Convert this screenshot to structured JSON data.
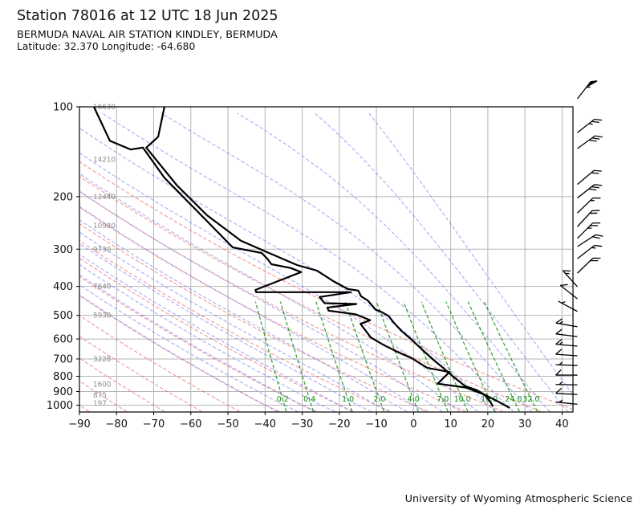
{
  "header": {
    "title": "Station 78016 at 12 UTC 18 Jun 2025",
    "subtitle": "BERMUDA NAVAL AIR STATION KINDLEY, BERMUDA",
    "location_line": "Latitude: 32.370 Longitude: -64.680"
  },
  "footer": {
    "credit": "University of Wyoming Atmospheric Science"
  },
  "axes": {
    "x_tick_labels_C": [
      -90,
      -80,
      -70,
      -60,
      -50,
      -40,
      -30,
      -20,
      -10,
      0,
      10,
      20,
      30,
      40
    ],
    "y_tick_labels_hPa": [
      100,
      200,
      300,
      400,
      500,
      600,
      700,
      800,
      900,
      1000
    ],
    "pressure_top_hPa": 100,
    "pressure_bottom_hPa": 1050
  },
  "height_labels": [
    {
      "p": 100,
      "label": "16630"
    },
    {
      "p": 150,
      "label": "14210"
    },
    {
      "p": 200,
      "label": "12440"
    },
    {
      "p": 250,
      "label": "10980"
    },
    {
      "p": 300,
      "label": "9730"
    },
    {
      "p": 400,
      "label": "7640"
    },
    {
      "p": 500,
      "label": "5930"
    },
    {
      "p": 700,
      "label": "3228"
    },
    {
      "p": 850,
      "label": "1600"
    },
    {
      "p": 925,
      "label": "875"
    },
    {
      "p": 985,
      "label": "197"
    }
  ],
  "colors": {
    "dry_adiabat": "#e85d5d",
    "moist_adiabat": "#7a7af0",
    "mixing_ratio": "#0e8c0e",
    "grid": "#b5b5b5",
    "curve": "#000000",
    "height_label": "#8a8a8a",
    "frame": "#000000"
  },
  "chart_data": {
    "type": "line",
    "diagram": "thermodynamic sounding (T vs log-p)",
    "pressure_unit": "hPa",
    "temperature_unit": "degC",
    "background_lines": {
      "dry_adiabats_C": {
        "start": -90,
        "end": 40,
        "step": 10
      },
      "moist_adiabats_C": {
        "start": -40,
        "end": 45,
        "step": 5
      },
      "mixing_ratios_g_kg": [
        0.2,
        0.4,
        1.0,
        2.0,
        4.0,
        7.0,
        10.0,
        16.0,
        24.0,
        32.0
      ],
      "mixing_label_pressure_hPa": 955
    },
    "series": [
      {
        "name": "temperature",
        "points": [
          [
            100,
            -67.1
          ],
          [
            126,
            -68.8
          ],
          [
            137,
            -72.0
          ],
          [
            183,
            -63.8
          ],
          [
            231,
            -55.6
          ],
          [
            281,
            -46.5
          ],
          [
            305,
            -40.0
          ],
          [
            339,
            -31.4
          ],
          [
            354,
            -26.0
          ],
          [
            384,
            -21.6
          ],
          [
            408,
            -17.7
          ],
          [
            413,
            -14.9
          ],
          [
            432,
            -14.1
          ],
          [
            445,
            -12.4
          ],
          [
            479,
            -10.2
          ],
          [
            485,
            -8.9
          ],
          [
            503,
            -6.7
          ],
          [
            531,
            -5.2
          ],
          [
            566,
            -3.1
          ],
          [
            603,
            -0.5
          ],
          [
            644,
            1.9
          ],
          [
            709,
            5.6
          ],
          [
            754,
            8.2
          ],
          [
            797,
            10.4
          ],
          [
            862,
            13.8
          ],
          [
            889,
            16.9
          ],
          [
            926,
            19.4
          ],
          [
            971,
            22.7
          ],
          [
            1022,
            25.9
          ]
        ]
      },
      {
        "name": "dewpoint",
        "points": [
          [
            100,
            -86.1
          ],
          [
            130,
            -81.8
          ],
          [
            139,
            -76.2
          ],
          [
            137,
            -72.9
          ],
          [
            173,
            -67.1
          ],
          [
            223,
            -58.4
          ],
          [
            296,
            -48.7
          ],
          [
            309,
            -40.9
          ],
          [
            323,
            -39.4
          ],
          [
            337,
            -38.3
          ],
          [
            347,
            -33.1
          ],
          [
            358,
            -30.3
          ],
          [
            386,
            -37.0
          ],
          [
            411,
            -42.6
          ],
          [
            418,
            -42.4
          ],
          [
            418,
            -16.9
          ],
          [
            434,
            -25.3
          ],
          [
            455,
            -24.0
          ],
          [
            458,
            -15.4
          ],
          [
            471,
            -23.2
          ],
          [
            482,
            -22.9
          ],
          [
            496,
            -15.6
          ],
          [
            519,
            -11.7
          ],
          [
            534,
            -14.3
          ],
          [
            593,
            -11.5
          ],
          [
            627,
            -8.2
          ],
          [
            657,
            -5.0
          ],
          [
            670,
            -3.5
          ],
          [
            696,
            -0.5
          ],
          [
            750,
            3.7
          ],
          [
            774,
            9.7
          ],
          [
            847,
            6.5
          ],
          [
            873,
            14.1
          ],
          [
            915,
            18.4
          ],
          [
            926,
            19.2
          ],
          [
            967,
            20.5
          ],
          [
            1010,
            21.4
          ]
        ]
      }
    ],
    "wind_barbs": [
      {
        "p": 94,
        "angle": 52,
        "pennants": 1,
        "full": 0,
        "half": 1
      },
      {
        "p": 122,
        "angle": 38,
        "pennants": 0,
        "full": 2,
        "half": 1
      },
      {
        "p": 138,
        "angle": 36,
        "pennants": 0,
        "full": 3,
        "half": 0
      },
      {
        "p": 182,
        "angle": 40,
        "pennants": 0,
        "full": 2,
        "half": 0
      },
      {
        "p": 202,
        "angle": 38,
        "pennants": 0,
        "full": 3,
        "half": 0
      },
      {
        "p": 227,
        "angle": 44,
        "pennants": 0,
        "full": 1,
        "half": 1
      },
      {
        "p": 252,
        "angle": 47,
        "pennants": 0,
        "full": 2,
        "half": 0
      },
      {
        "p": 276,
        "angle": 45,
        "pennants": 0,
        "full": 2,
        "half": 1
      },
      {
        "p": 294,
        "angle": 33,
        "pennants": 0,
        "full": 2,
        "half": 0
      },
      {
        "p": 323,
        "angle": 38,
        "pennants": 0,
        "full": 1,
        "half": 1
      },
      {
        "p": 361,
        "angle": 44,
        "pennants": 0,
        "full": 2,
        "half": 0
      },
      {
        "p": 401,
        "angle": 132,
        "pennants": 0,
        "full": 1,
        "half": 1
      },
      {
        "p": 440,
        "angle": 142,
        "pennants": 0,
        "full": 1,
        "half": 0
      },
      {
        "p": 485,
        "angle": 152,
        "pennants": 0,
        "full": 0,
        "half": 1
      },
      {
        "p": 546,
        "angle": 170,
        "pennants": 0,
        "full": 1,
        "half": 1
      },
      {
        "p": 589,
        "angle": 173,
        "pennants": 0,
        "full": 1,
        "half": 0
      },
      {
        "p": 634,
        "angle": 175,
        "pennants": 0,
        "full": 1,
        "half": 1
      },
      {
        "p": 683,
        "angle": 176,
        "pennants": 0,
        "full": 1,
        "half": 0
      },
      {
        "p": 736,
        "angle": 178,
        "pennants": 0,
        "full": 0,
        "half": 1
      },
      {
        "p": 793,
        "angle": 180,
        "pennants": 0,
        "full": 1,
        "half": 0
      },
      {
        "p": 855,
        "angle": 179,
        "pennants": 0,
        "full": 0,
        "half": 1
      },
      {
        "p": 921,
        "angle": 177,
        "pennants": 0,
        "full": 1,
        "half": 0
      },
      {
        "p": 993,
        "angle": 174,
        "pennants": 0,
        "full": 0,
        "half": 1
      }
    ]
  }
}
